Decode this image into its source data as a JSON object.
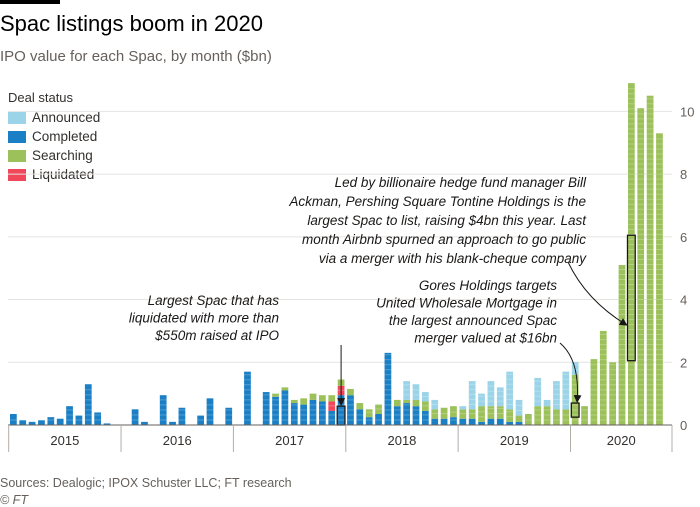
{
  "header": {
    "title": "Spac listings boom in 2020",
    "subtitle": "IPO value for each Spac, by month ($bn)"
  },
  "legend": {
    "title": "Deal status",
    "items": [
      {
        "label": "Announced",
        "color": "#9bd4e8"
      },
      {
        "label": "Completed",
        "color": "#1a7fc4"
      },
      {
        "label": "Searching",
        "color": "#9cc15a"
      },
      {
        "label": "Liquidated",
        "color": "#f0475a"
      }
    ]
  },
  "annotations": [
    {
      "lines": [
        "Led by billionaire hedge fund manager Bill",
        "Ackman, Pershing Square Tontine Holdings is the",
        "largest Spac to list, raising $4bn this year. Last",
        "month Airbnb spurned an approach to go public",
        "via a merger with his blank-cheque company"
      ]
    },
    {
      "lines": [
        "Gores Holdings targets",
        "United Wholesale Mortgage in",
        "the largest announced Spac",
        "merger valued at $16bn"
      ]
    },
    {
      "lines": [
        "Largest Spac that has",
        "liquidated with more than",
        "$550m raised at IPO"
      ]
    }
  ],
  "footer": {
    "source": "Sources: Dealogic; IPOX Schuster LLC; FT research",
    "copyright": "© FT"
  },
  "chart_data": {
    "type": "bar",
    "stacked": true,
    "title": "Spac listings boom in 2020",
    "subtitle": "IPO value for each Spac, by month ($bn)",
    "ylim": [
      0,
      11
    ],
    "yticks": [
      0,
      2,
      4,
      6,
      8,
      10
    ],
    "x_tick_labels": [
      "2015",
      "2016",
      "2017",
      "2018",
      "2019",
      "2020"
    ],
    "months": [
      "2015-01",
      "2015-02",
      "2015-03",
      "2015-04",
      "2015-05",
      "2015-06",
      "2015-07",
      "2015-08",
      "2015-09",
      "2015-10",
      "2015-11",
      "2015-12",
      "2016-01",
      "2016-02",
      "2016-03",
      "2016-04",
      "2016-05",
      "2016-06",
      "2016-07",
      "2016-08",
      "2016-09",
      "2016-10",
      "2016-11",
      "2016-12",
      "2017-01",
      "2017-02",
      "2017-03",
      "2017-04",
      "2017-05",
      "2017-06",
      "2017-07",
      "2017-08",
      "2017-09",
      "2017-10",
      "2017-11",
      "2017-12",
      "2018-01",
      "2018-02",
      "2018-03",
      "2018-04",
      "2018-05",
      "2018-06",
      "2018-07",
      "2018-08",
      "2018-09",
      "2018-10",
      "2018-11",
      "2018-12",
      "2019-01",
      "2019-02",
      "2019-03",
      "2019-04",
      "2019-05",
      "2019-06",
      "2019-07",
      "2019-08",
      "2019-09",
      "2019-10",
      "2019-11",
      "2019-12",
      "2020-01",
      "2020-02",
      "2020-03",
      "2020-04",
      "2020-05",
      "2020-06",
      "2020-07",
      "2020-08",
      "2020-09",
      "2020-10",
      "2020-11"
    ],
    "series": [
      {
        "name": "Announced",
        "color": "#9bd4e8",
        "values": [
          0,
          0,
          0,
          0,
          0,
          0,
          0,
          0,
          0,
          0,
          0,
          0,
          0,
          0,
          0,
          0,
          0,
          0,
          0,
          0,
          0,
          0,
          0,
          0,
          0,
          0,
          0,
          0,
          0,
          0,
          0,
          0,
          0,
          0,
          0,
          0,
          0,
          0,
          0,
          0,
          0,
          0,
          0.6,
          0.5,
          0.3,
          0.3,
          0,
          0,
          0.1,
          0.9,
          0.4,
          0.8,
          0.6,
          1.2,
          0.5,
          0,
          0.9,
          0.2,
          0.9,
          1.2,
          0.4,
          0,
          0,
          0,
          0,
          0,
          0,
          0,
          0,
          0,
          0
        ]
      },
      {
        "name": "Completed",
        "color": "#1a7fc4",
        "values": [
          0.35,
          0.15,
          0.1,
          0.15,
          0.25,
          0.2,
          0.6,
          0.3,
          1.3,
          0.4,
          0.05,
          0,
          0,
          0.5,
          0.1,
          0,
          0.95,
          0.1,
          0.55,
          0,
          0.3,
          0.85,
          0,
          0.55,
          0,
          1.7,
          0,
          1.05,
          0.9,
          1.1,
          0.7,
          0.65,
          0.8,
          0.75,
          0.45,
          0.95,
          0.95,
          0.5,
          0.25,
          0.35,
          2.3,
          0.6,
          0.7,
          0.6,
          0.45,
          0.2,
          0.2,
          0.25,
          0.2,
          0.2,
          0.1,
          0.2,
          0.2,
          0.1,
          0.1,
          0,
          0,
          0,
          0,
          0,
          0,
          0,
          0,
          0,
          0,
          0,
          0,
          0,
          0,
          0,
          0
        ]
      },
      {
        "name": "Searching",
        "color": "#9cc15a",
        "values": [
          0,
          0,
          0,
          0,
          0,
          0,
          0,
          0,
          0,
          0,
          0,
          0,
          0,
          0,
          0,
          0,
          0,
          0,
          0,
          0,
          0,
          0,
          0,
          0,
          0,
          0,
          0,
          0,
          0.1,
          0.1,
          0.1,
          0.2,
          0.2,
          0.2,
          0.2,
          0.2,
          0.2,
          0.2,
          0.25,
          0.3,
          0,
          0.2,
          0.1,
          0.2,
          0.3,
          0.3,
          0.35,
          0.35,
          0.3,
          0.3,
          0.5,
          0.4,
          0.4,
          0.4,
          0.2,
          0.35,
          0.6,
          0.6,
          0.5,
          0.5,
          1.6,
          0.6,
          2.1,
          3.0,
          2.0,
          5.1,
          10.9,
          10.1,
          10.5,
          9.3,
          0
        ]
      },
      {
        "name": "Liquidated",
        "color": "#f0475a",
        "values": [
          0,
          0,
          0,
          0,
          0,
          0,
          0,
          0,
          0,
          0,
          0,
          0,
          0,
          0,
          0,
          0,
          0,
          0,
          0,
          0,
          0,
          0,
          0,
          0,
          0,
          0,
          0,
          0,
          0,
          0,
          0,
          0,
          0,
          0,
          0.3,
          0.3,
          0,
          0,
          0,
          0,
          0,
          0,
          0,
          0,
          0,
          0,
          0,
          0,
          0,
          0,
          0,
          0,
          0,
          0,
          0,
          0,
          0,
          0,
          0,
          0,
          0,
          0,
          0,
          0,
          0,
          0,
          0,
          0,
          0,
          0,
          0
        ]
      }
    ],
    "highlights": [
      {
        "month": "2020-07",
        "from": 2.05,
        "to": 6.05,
        "label": "Pershing Square Tontine Holdings"
      },
      {
        "month": "2020-01",
        "from": 0.25,
        "to": 0.7,
        "label": "Gores Holdings"
      },
      {
        "month": "2017-12",
        "from": 0,
        "to": 0.6,
        "label": "Largest liquidated Spac"
      }
    ]
  }
}
